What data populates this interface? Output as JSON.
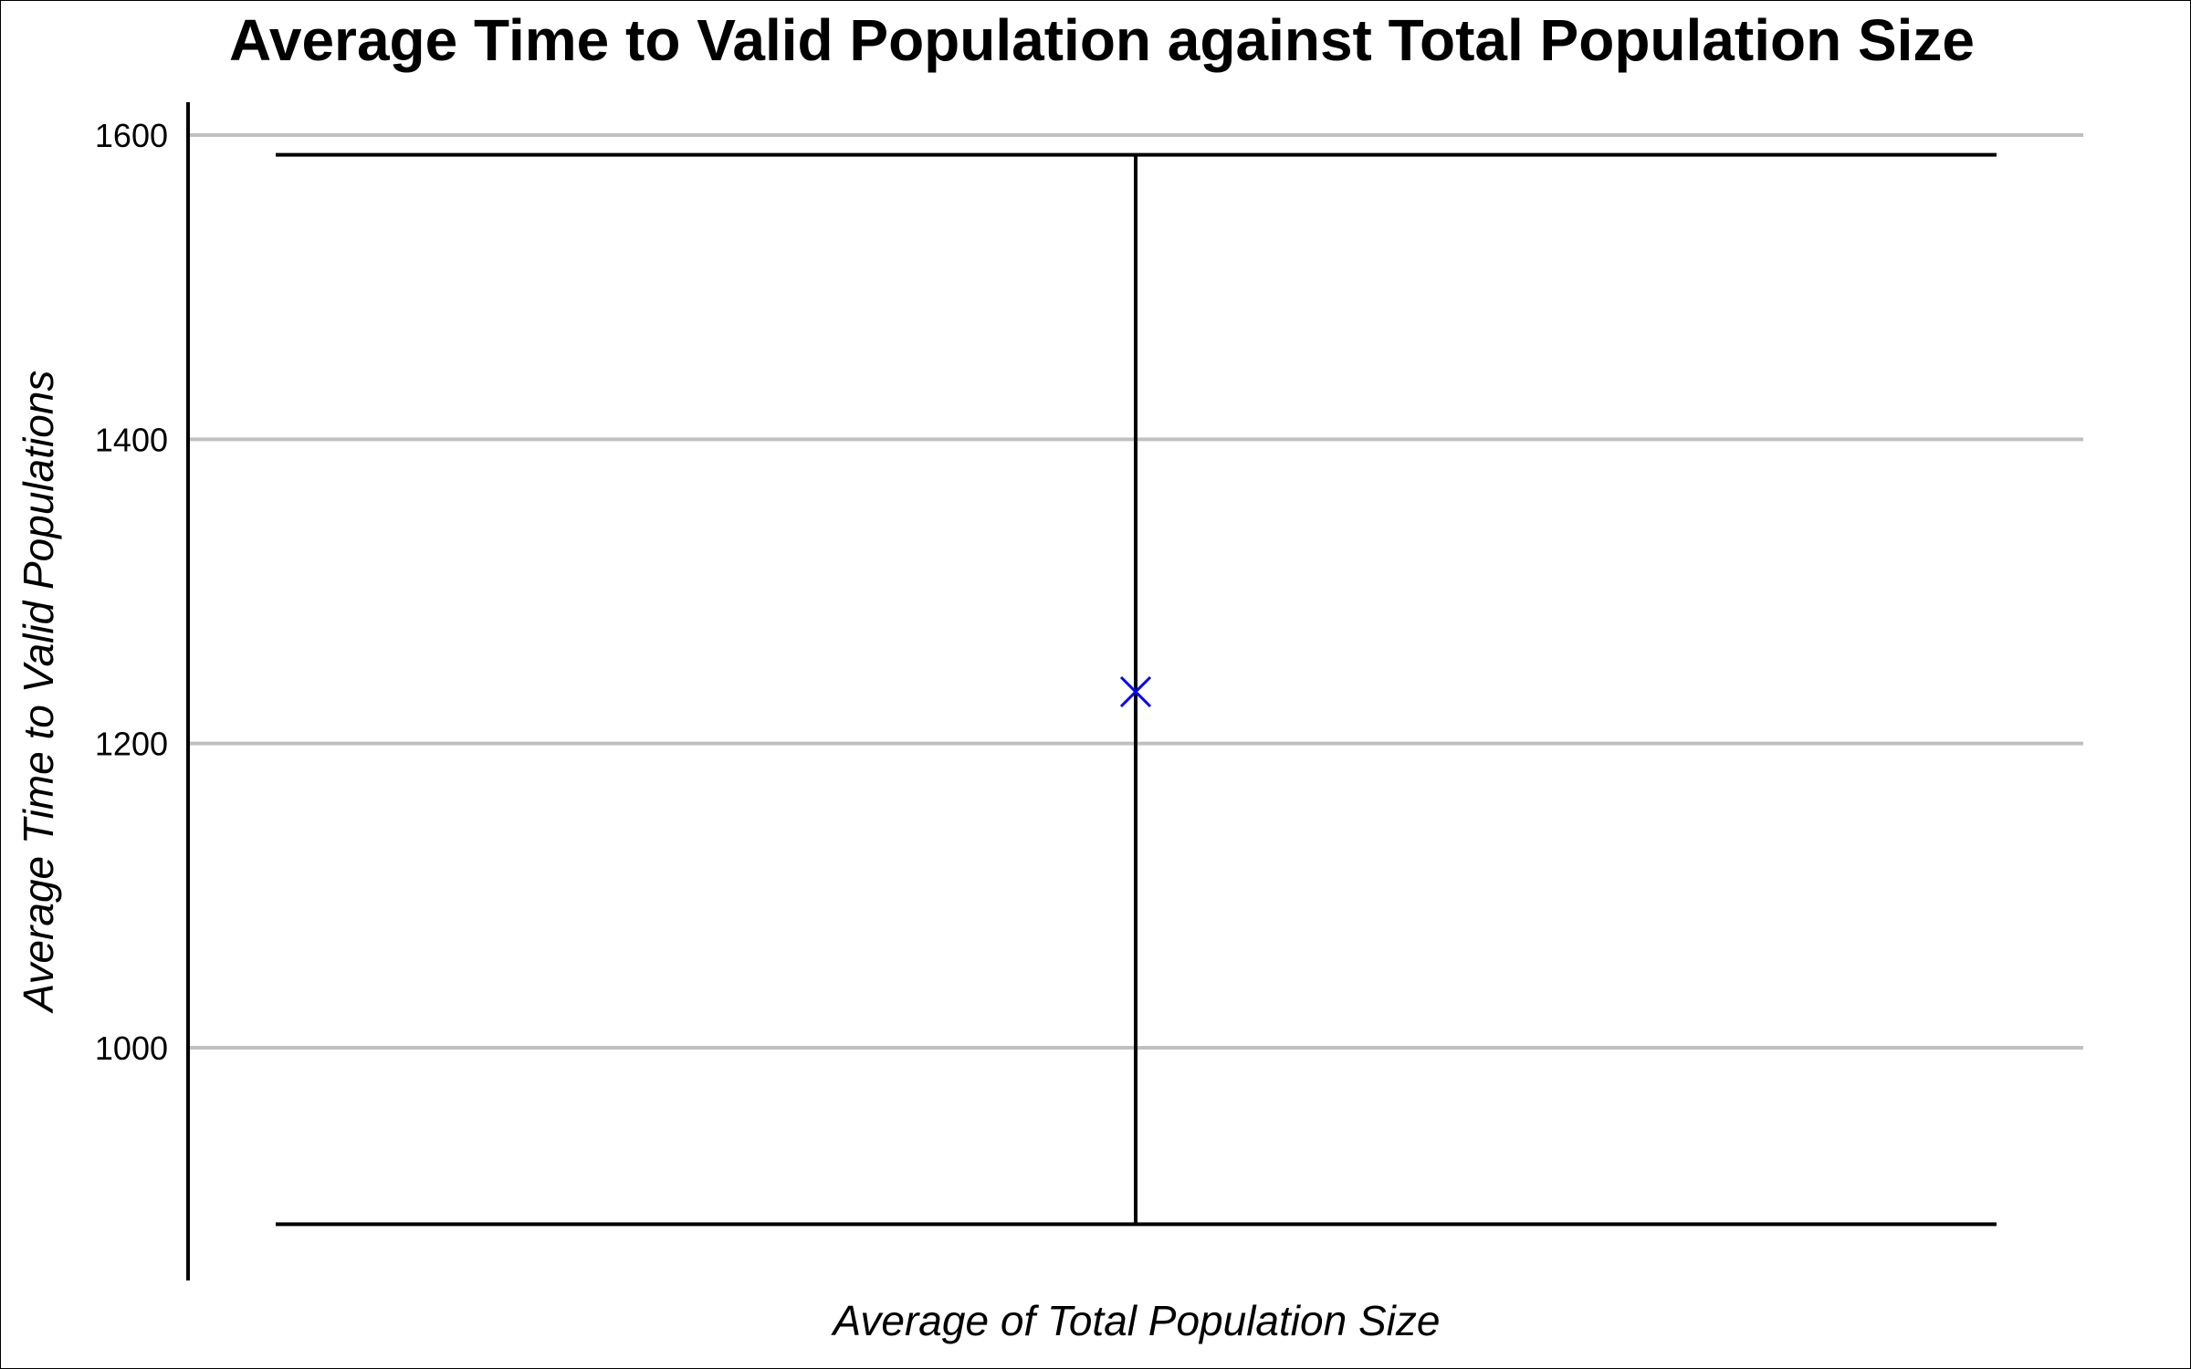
{
  "chart_data": {
    "type": "scatter",
    "title": "Average Time to Valid Population against Total Population Size",
    "xlabel": "Average of Total Population Size",
    "ylabel": "Average Time to Valid Populations",
    "ylim": [
      880,
      1620
    ],
    "yticks": [
      1000,
      1200,
      1400,
      1600
    ],
    "grid": "horizontal",
    "legend": "none",
    "series": [
      {
        "marker": "x",
        "color": "#0000ff",
        "points": [
          {
            "y": 1234,
            "error_low": 884,
            "error_high": 1587
          }
        ]
      }
    ],
    "colors": {
      "grid": "#c0c0c0",
      "axis": "#000000",
      "error_bar": "#000000"
    }
  }
}
